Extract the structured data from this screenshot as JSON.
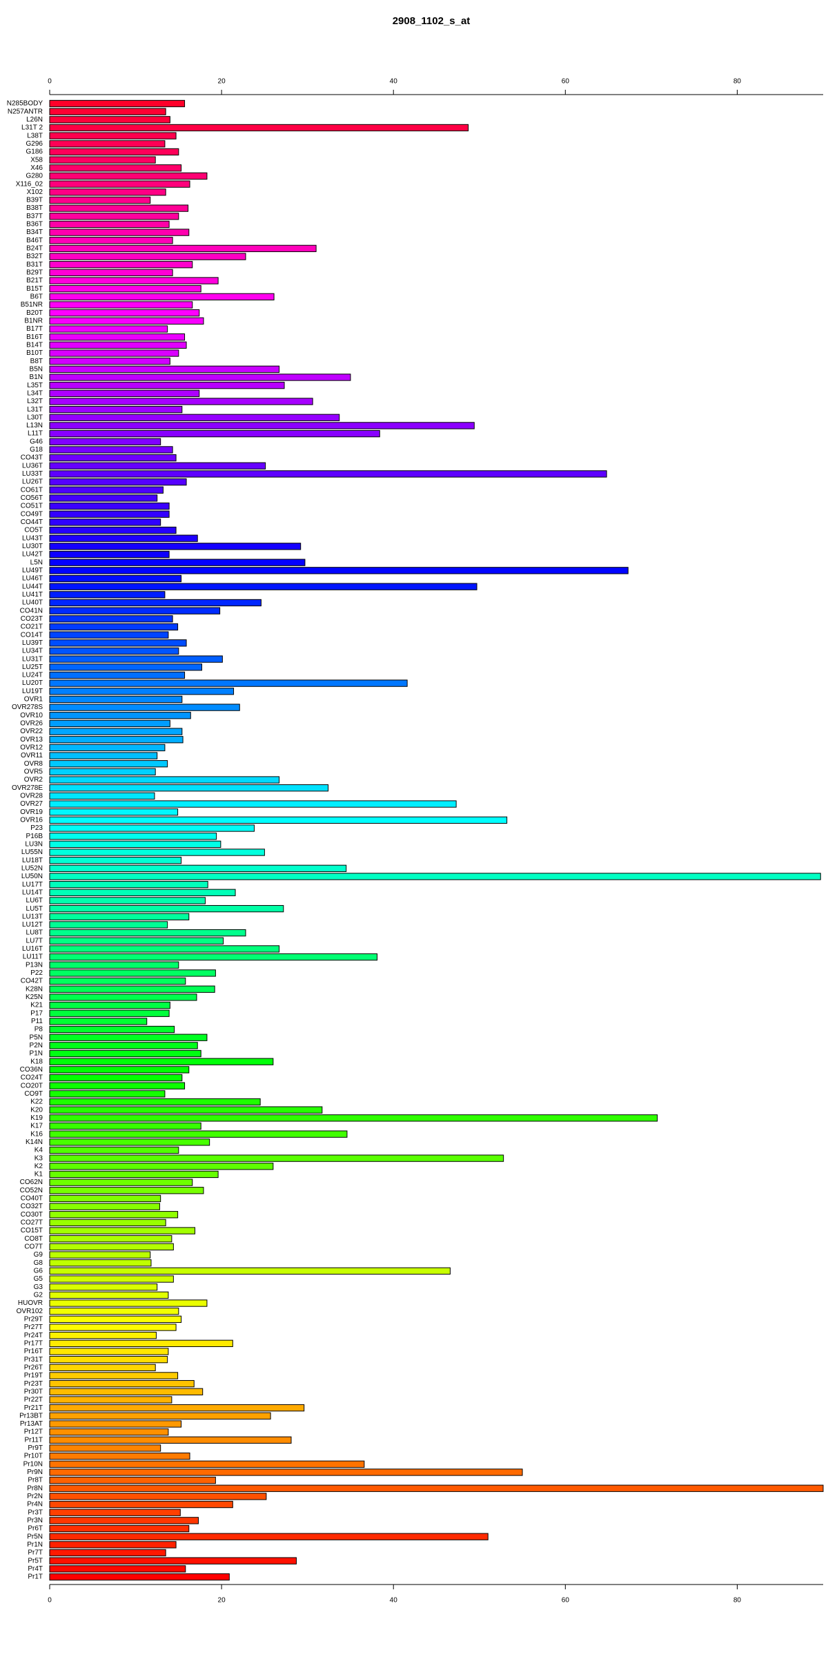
{
  "chart_data": {
    "type": "barh",
    "title": "2908_1102_s_at",
    "categories": [
      "N285BODY",
      "N257ANTR",
      "L26N",
      "L31T 2",
      "L38T",
      "G296",
      "G186",
      "X58",
      "X46",
      "G280",
      "X116_02",
      "X102",
      "B39T",
      "B38T",
      "B37T",
      "B36T",
      "B34T",
      "B46T",
      "B24T",
      "B32T",
      "B31T",
      "B29T",
      "B21T",
      "B15T",
      "B6T",
      "B51NR",
      "B20T",
      "B1NR",
      "B17T",
      "B16T",
      "B14T",
      "B10T",
      "B8T",
      "B5N",
      "B1N",
      "L35T",
      "L34T",
      "L32T",
      "L31T",
      "L30T",
      "L13N",
      "L11T",
      "G46",
      "G18",
      "CO43T",
      "LU36T",
      "LU33T",
      "LU26T",
      "CO61T",
      "CO56T",
      "CO51T",
      "CO49T",
      "CO44T",
      "CO5T",
      "LU43T",
      "LU30T",
      "LU42T",
      "L5N",
      "LU49T",
      "LU46T",
      "LU44T",
      "LU41T",
      "LU40T",
      "CO41N",
      "CO23T",
      "CO21T",
      "CO14T",
      "LU39T",
      "LU34T",
      "LU31T",
      "LU25T",
      "LU24T",
      "LU20T",
      "LU19T",
      "OVR1",
      "OVR278S",
      "OVR10",
      "OVR26",
      "OVR22",
      "OVR13",
      "OVR12",
      "OVR11",
      "OVR8",
      "OVR5",
      "OVR2",
      "OVR278E",
      "OVR28",
      "OVR27",
      "OVR19",
      "OVR16",
      "P23",
      "P16B",
      "LU3N",
      "LU55N",
      "LU18T",
      "LU52N",
      "LU50N",
      "LU17T",
      "LU14T",
      "LU6T",
      "LU5T",
      "LU13T",
      "LU12T",
      "LU8T",
      "LU7T",
      "LU16T",
      "LU11T",
      "P13N",
      "P22",
      "CO42T",
      "K28N",
      "K25N",
      "K21",
      "P17",
      "P11",
      "P8",
      "P5N",
      "P2N",
      "P1N",
      "K18",
      "CO36N",
      "CO24T",
      "CO20T",
      "CO9T",
      "K22",
      "K20",
      "K19",
      "K17",
      "K16",
      "K14N",
      "K4",
      "K3",
      "K2",
      "K1",
      "CO62N",
      "CO52N",
      "CO40T",
      "CO32T",
      "CO30T",
      "CO27T",
      "CO15T",
      "CO8T",
      "CO7T",
      "G9",
      "G8",
      "G6",
      "G5",
      "G3",
      "G2",
      "HUOVR",
      "OVR102",
      "Pr29T",
      "Pr27T",
      "Pr24T",
      "Pr17T",
      "Pr16T",
      "Pr31T",
      "Pr26T",
      "Pr19T",
      "Pr23T",
      "Pr30T",
      "Pr22T",
      "Pr21T",
      "Pr13BT",
      "Pr13AT",
      "Pr12T",
      "Pr11T",
      "Pr9T",
      "Pr10T",
      "Pr10N",
      "Pr9N",
      "Pr8T",
      "Pr8N",
      "Pr2N",
      "Pr4N",
      "Pr3T",
      "Pr3N",
      "Pr6T",
      "Pr5N",
      "Pr1N",
      "Pr7T",
      "Pr5T",
      "Pr4T",
      "Pr1T"
    ],
    "values": [
      15.7,
      13.5,
      14.0,
      48.7,
      14.7,
      13.4,
      15.0,
      12.3,
      15.3,
      18.3,
      16.3,
      13.5,
      11.7,
      16.1,
      15.0,
      13.9,
      16.2,
      14.3,
      31.0,
      22.8,
      16.6,
      14.3,
      19.6,
      17.6,
      26.1,
      16.6,
      17.4,
      17.9,
      13.7,
      15.7,
      15.9,
      15.0,
      14.0,
      26.7,
      35.0,
      27.3,
      17.4,
      30.6,
      15.4,
      33.7,
      49.4,
      38.4,
      12.9,
      14.3,
      14.7,
      25.1,
      64.8,
      15.9,
      13.2,
      12.5,
      13.9,
      13.9,
      12.9,
      14.7,
      17.2,
      29.2,
      13.9,
      29.7,
      67.3,
      15.3,
      49.7,
      13.4,
      24.6,
      19.8,
      14.3,
      14.9,
      13.8,
      15.9,
      15.0,
      20.1,
      17.7,
      15.7,
      41.6,
      21.4,
      15.4,
      22.1,
      16.4,
      14.0,
      15.4,
      15.5,
      13.4,
      12.5,
      13.7,
      12.3,
      26.7,
      32.4,
      12.2,
      47.3,
      14.9,
      53.2,
      23.8,
      19.4,
      19.9,
      25.0,
      15.3,
      34.5,
      89.7,
      18.4,
      21.6,
      18.1,
      27.2,
      16.2,
      13.7,
      22.8,
      20.2,
      26.7,
      38.1,
      15.0,
      19.3,
      15.8,
      19.2,
      17.1,
      14.0,
      13.9,
      11.3,
      14.5,
      18.3,
      17.2,
      17.6,
      26.0,
      16.2,
      15.4,
      15.7,
      13.4,
      24.5,
      31.7,
      70.7,
      17.6,
      34.6,
      18.6,
      15.0,
      52.8,
      26.0,
      19.6,
      16.6,
      17.9,
      12.9,
      12.8,
      14.9,
      13.5,
      16.9,
      14.2,
      14.4,
      11.7,
      11.8,
      46.6,
      14.4,
      12.5,
      13.8,
      18.3,
      15.0,
      15.3,
      14.7,
      12.4,
      21.3,
      13.8,
      13.7,
      12.3,
      14.9,
      16.8,
      17.8,
      14.2,
      29.6,
      25.7,
      15.3,
      13.8,
      28.1,
      12.9,
      16.3,
      36.6,
      55.0,
      19.3,
      90.0,
      25.2,
      21.3,
      15.2,
      17.3,
      16.2,
      51.0,
      14.7,
      13.5,
      28.7,
      15.8,
      20.9
    ],
    "colors": [
      "hsl(350,100%,50%)",
      "hsl(348,100%,50%)",
      "hsl(346,100%,50%)",
      "hsl(344,100%,50%)",
      "hsl(342,100%,50%)",
      "hsl(340,100%,50%)",
      "hsl(339,100%,50%)",
      "hsl(337,100%,50%)",
      "hsl(335,100%,50%)",
      "hsl(333,100%,50%)",
      "hsl(331,100%,50%)",
      "hsl(329,100%,50%)",
      "hsl(327,100%,50%)",
      "hsl(325,100%,50%)",
      "hsl(323,100%,50%)",
      "hsl(321,100%,50%)",
      "hsl(319,100%,50%)",
      "hsl(317,100%,50%)",
      "hsl(316,100%,50%)",
      "hsl(314,100%,50%)",
      "hsl(312,100%,50%)",
      "hsl(310,100%,50%)",
      "hsl(308,100%,50%)",
      "hsl(306,100%,50%)",
      "hsl(304,100%,50%)",
      "hsl(302,100%,50%)",
      "hsl(300,100%,50%)",
      "hsl(298,100%,50%)",
      "hsl(296,100%,50%)",
      "hsl(295,100%,50%)",
      "hsl(293,100%,50%)",
      "hsl(291,100%,50%)",
      "hsl(289,100%,50%)",
      "hsl(287,100%,50%)",
      "hsl(285,100%,50%)",
      "hsl(283,100%,50%)",
      "hsl(281,100%,50%)",
      "hsl(279,100%,50%)",
      "hsl(277,100%,50%)",
      "hsl(275,100%,50%)",
      "hsl(273,100%,50%)",
      "hsl(272,100%,50%)",
      "hsl(270,100%,50%)",
      "hsl(268,100%,50%)",
      "hsl(266,100%,50%)",
      "hsl(264,100%,50%)",
      "hsl(262,100%,50%)",
      "hsl(260,100%,50%)",
      "hsl(258,100%,50%)",
      "hsl(256,100%,50%)",
      "hsl(254,100%,50%)",
      "hsl(252,100%,50%)",
      "hsl(251,100%,50%)",
      "hsl(249,100%,50%)",
      "hsl(247,100%,50%)",
      "hsl(245,100%,50%)",
      "hsl(243,100%,50%)",
      "hsl(241,100%,50%)",
      "hsl(239,100%,50%)",
      "hsl(237,100%,50%)",
      "hsl(235,100%,50%)",
      "hsl(233,100%,50%)",
      "hsl(231,100%,50%)",
      "hsl(230,100%,50%)",
      "hsl(228,100%,50%)",
      "hsl(226,100%,50%)",
      "hsl(224,100%,50%)",
      "hsl(222,100%,50%)",
      "hsl(220,100%,50%)",
      "hsl(218,100%,50%)",
      "hsl(216,100%,50%)",
      "hsl(214,100%,50%)",
      "hsl(212,100%,50%)",
      "hsl(210,100%,50%)",
      "hsl(208,100%,50%)",
      "hsl(207,100%,50%)",
      "hsl(205,100%,50%)",
      "hsl(203,100%,50%)",
      "hsl(201,100%,50%)",
      "hsl(199,100%,50%)",
      "hsl(197,100%,50%)",
      "hsl(195,100%,50%)",
      "hsl(193,100%,50%)",
      "hsl(191,100%,50%)",
      "hsl(189,100%,50%)",
      "hsl(187,100%,50%)",
      "hsl(186,100%,50%)",
      "hsl(184,100%,50%)",
      "hsl(182,100%,50%)",
      "hsl(180,100%,50%)",
      "hsl(178,100%,50%)",
      "hsl(176,100%,50%)",
      "hsl(174,100%,50%)",
      "hsl(172,100%,50%)",
      "hsl(170,100%,50%)",
      "hsl(168,100%,50%)",
      "hsl(166,100%,50%)",
      "hsl(164,100%,50%)",
      "hsl(163,100%,50%)",
      "hsl(161,100%,50%)",
      "hsl(159,100%,50%)",
      "hsl(157,100%,50%)",
      "hsl(155,100%,50%)",
      "hsl(153,100%,50%)",
      "hsl(151,100%,50%)",
      "hsl(149,100%,50%)",
      "hsl(147,100%,50%)",
      "hsl(145,100%,50%)",
      "hsl(143,100%,50%)",
      "hsl(142,100%,50%)",
      "hsl(140,100%,50%)",
      "hsl(138,100%,50%)",
      "hsl(136,100%,50%)",
      "hsl(134,100%,50%)",
      "hsl(132,100%,50%)",
      "hsl(130,100%,50%)",
      "hsl(128,100%,50%)",
      "hsl(126,100%,50%)",
      "hsl(124,100%,50%)",
      "hsl(122,100%,50%)",
      "hsl(120,100%,50%)",
      "hsl(119,100%,50%)",
      "hsl(117,100%,50%)",
      "hsl(115,100%,50%)",
      "hsl(113,100%,50%)",
      "hsl(111,100%,50%)",
      "hsl(109,100%,50%)",
      "hsl(107,100%,50%)",
      "hsl(105,100%,50%)",
      "hsl(103,100%,50%)",
      "hsl(101,100%,50%)",
      "hsl(99,100%,50%)",
      "hsl(98,100%,50%)",
      "hsl(96,100%,50%)",
      "hsl(94,100%,50%)",
      "hsl(92,100%,50%)",
      "hsl(90,100%,50%)",
      "hsl(88,100%,50%)",
      "hsl(86,100%,50%)",
      "hsl(84,100%,50%)",
      "hsl(82,100%,50%)",
      "hsl(80,100%,50%)",
      "hsl(78,100%,50%)",
      "hsl(76,100%,50%)",
      "hsl(75,100%,50%)",
      "hsl(73,100%,50%)",
      "hsl(71,100%,50%)",
      "hsl(69,100%,50%)",
      "hsl(67,100%,50%)",
      "hsl(65,100%,50%)",
      "hsl(63,100%,50%)",
      "hsl(61,100%,50%)",
      "hsl(59,100%,50%)",
      "hsl(57,100%,50%)",
      "hsl(55,100%,50%)",
      "hsl(54,100%,50%)",
      "hsl(52,100%,50%)",
      "hsl(50,100%,50%)",
      "hsl(48,100%,50%)",
      "hsl(46,100%,50%)",
      "hsl(44,100%,50%)",
      "hsl(42,100%,50%)",
      "hsl(40,100%,50%)",
      "hsl(38,100%,50%)",
      "hsl(36,100%,50%)",
      "hsl(34,100%,50%)",
      "hsl(33,100%,50%)",
      "hsl(31,100%,50%)",
      "hsl(29,100%,50%)",
      "hsl(27,100%,50%)",
      "hsl(25,100%,50%)",
      "hsl(23,100%,50%)",
      "hsl(21,100%,50%)",
      "hsl(19,100%,50%)",
      "hsl(17,100%,50%)",
      "hsl(15,100%,50%)",
      "hsl(13,100%,50%)",
      "hsl(11,100%,50%)",
      "hsl(10,100%,50%)",
      "hsl(8,100%,50%)",
      "hsl(6,100%,50%)",
      "hsl(4,100%,50%)",
      "hsl(2,100%,50%)",
      "hsl(0,100%,50%)"
    ],
    "xlim": [
      0,
      90
    ],
    "xticks": [
      0,
      20,
      40,
      60,
      80
    ]
  }
}
